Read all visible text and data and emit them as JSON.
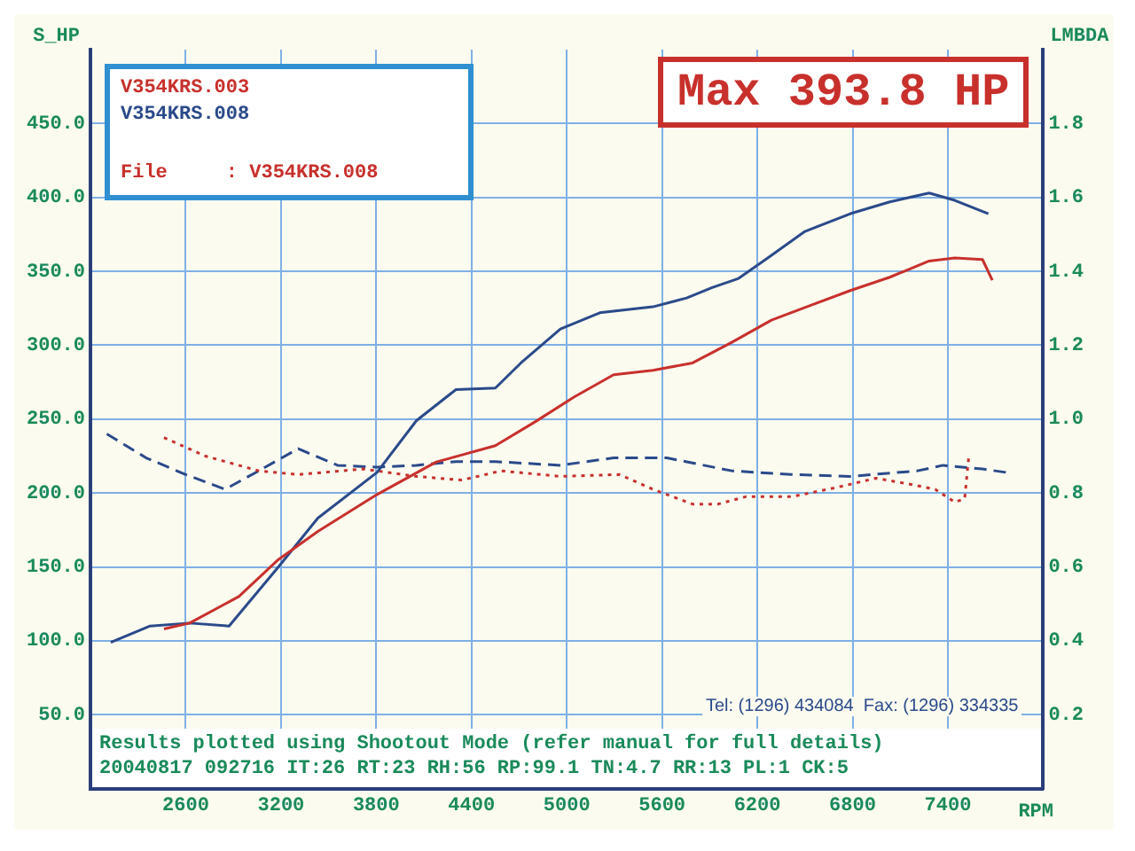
{
  "chart_data": {
    "type": "line",
    "title": "Max 393.8 HP",
    "ylabel": "S_HP",
    "y2label": "LMBDA",
    "xlabel": "RPM",
    "annotations": [
      "File     : V354KRS.008",
      "Results plotted using Shootout Mode (refer manual for full details)",
      "20040817 092716 IT:26 RT:23 RH:56 RP:99.1 TN:4.7 RR:13 PL:1 CK:5",
      "Tel: (1296) 434084  Fax: (1296) 334335"
    ],
    "xlim": [
      2000,
      8000
    ],
    "xticks": [
      2600,
      3200,
      3800,
      4400,
      5000,
      5600,
      6200,
      6800,
      7400
    ],
    "ylim": [
      0,
      500
    ],
    "yticks": [
      {
        "value": 50,
        "label": "50.0"
      },
      {
        "value": 100,
        "label": "100.0"
      },
      {
        "value": 150,
        "label": "150.0"
      },
      {
        "value": 200,
        "label": "200.0"
      },
      {
        "value": 250,
        "label": "250.0"
      },
      {
        "value": 300,
        "label": "300.0"
      },
      {
        "value": 350,
        "label": "350.0"
      },
      {
        "value": 400,
        "label": "400.0"
      },
      {
        "value": 450,
        "label": "450.0"
      }
    ],
    "y2lim": [
      0,
      2
    ],
    "y2ticks": [
      {
        "value": 0.2,
        "label": "0.2"
      },
      {
        "value": 0.4,
        "label": "0.4"
      },
      {
        "value": 0.6,
        "label": "0.6"
      },
      {
        "value": 0.8,
        "label": "0.8"
      },
      {
        "value": 1,
        "label": "1.0"
      },
      {
        "value": 1.2,
        "label": "1.2"
      },
      {
        "value": 1.4,
        "label": "1.4"
      },
      {
        "value": 1.6,
        "label": "1.6"
      },
      {
        "value": 1.8,
        "label": "1.8"
      }
    ],
    "grid": true,
    "legend": "top left",
    "marker": "none",
    "line_style": "solid",
    "series": [
      {
        "name": "V354KRS.003",
        "color": "#c8302c",
        "x": [
          2463,
          2625,
          2935,
          3184,
          3432,
          3805,
          4178,
          4550,
          4798,
          5047,
          5295,
          5543,
          5792,
          6040,
          6289,
          6537,
          6786,
          7034,
          7282,
          7444,
          7618,
          7680
        ],
        "values": [
          108,
          112,
          130,
          155,
          174,
          199,
          221,
          232,
          248,
          265,
          280,
          283,
          288,
          302,
          317,
          327,
          337,
          346,
          357,
          359,
          358,
          344
        ]
      },
      {
        "name": "V354KRS.008",
        "color": "#2a4a8a",
        "x": [
          2128,
          2376,
          2625,
          2873,
          3184,
          3432,
          3805,
          4053,
          4302,
          4550,
          4711,
          4960,
          5208,
          5543,
          5755,
          5916,
          6078,
          6252,
          6500,
          6786,
          7034,
          7282,
          7444,
          7655
        ],
        "values": [
          99,
          110,
          112,
          110,
          150,
          183,
          214,
          249,
          270,
          271,
          288,
          311,
          322,
          326,
          332,
          339,
          345,
          358,
          377,
          389,
          397,
          403,
          398,
          389
        ]
      },
      {
        "color": "#c8302c",
        "axis": "y2",
        "line_style": "dotted",
        "x": [
          2463,
          2724,
          3060,
          3308,
          3718,
          4053,
          4339,
          4587,
          4960,
          5332,
          5543,
          5792,
          5953,
          6127,
          6413,
          6699,
          6947,
          7146,
          7320,
          7444,
          7506,
          7531
        ],
        "values": [
          0.95,
          0.9,
          0.86,
          0.85,
          0.865,
          0.845,
          0.835,
          0.86,
          0.845,
          0.85,
          0.81,
          0.77,
          0.77,
          0.79,
          0.79,
          0.815,
          0.84,
          0.825,
          0.81,
          0.775,
          0.785,
          0.895
        ]
      },
      {
        "color": "#2a4a8a",
        "axis": "y2",
        "line_style": "dashed",
        "x": [
          2103,
          2351,
          2600,
          2848,
          3060,
          3308,
          3556,
          3805,
          4053,
          4302,
          4550,
          4960,
          5295,
          5630,
          6040,
          6413,
          6786,
          7208,
          7369,
          7618,
          7779
        ],
        "values": [
          0.96,
          0.895,
          0.85,
          0.81,
          0.86,
          0.92,
          0.875,
          0.87,
          0.875,
          0.885,
          0.885,
          0.875,
          0.895,
          0.895,
          0.86,
          0.85,
          0.845,
          0.86,
          0.875,
          0.865,
          0.855
        ]
      }
    ]
  }
}
